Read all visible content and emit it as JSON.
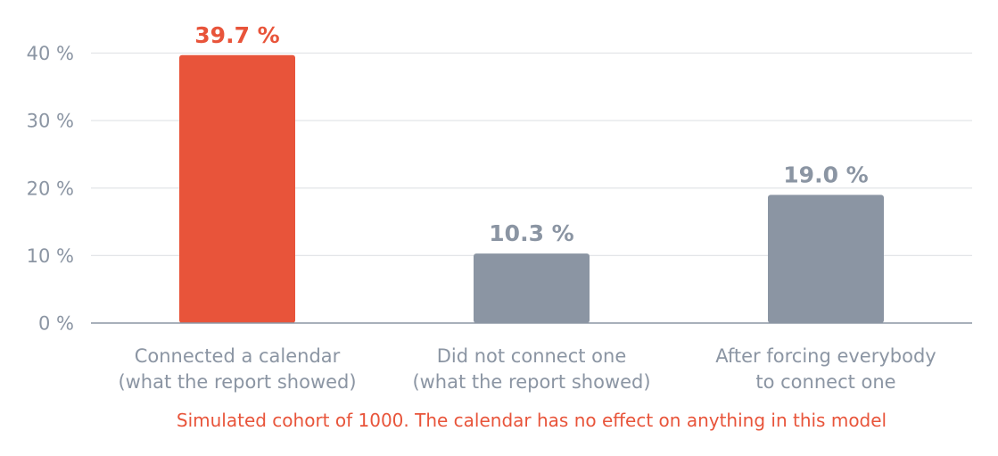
{
  "chart_data": {
    "type": "bar",
    "categories": [
      [
        "Connected a calendar",
        "(what the report showed)"
      ],
      [
        "Did not connect one",
        "(what the report showed)"
      ],
      [
        "After forcing everybody",
        "to connect one"
      ]
    ],
    "values": [
      39.7,
      10.3,
      19.0
    ],
    "value_labels": [
      "39.7 %",
      "10.3 %",
      "19.0 %"
    ],
    "bar_colors": [
      "#e8543a",
      "#8b95a3",
      "#8b95a3"
    ],
    "label_colors": [
      "#e8543a",
      "#8b95a3",
      "#8b95a3"
    ],
    "ylim": [
      0,
      40
    ],
    "yticks": [
      0,
      10,
      20,
      30,
      40
    ],
    "ytick_labels": [
      "0 %",
      "10 %",
      "20 %",
      "30 %",
      "40 %"
    ],
    "grid": true,
    "caption": "Simulated cohort of 1000. The calendar has no effect on anything in this model",
    "caption_color": "#e8543a",
    "gridline_color": "#e3e5e8",
    "axis_color": "#8b95a3",
    "text_color": "#8b95a3"
  }
}
